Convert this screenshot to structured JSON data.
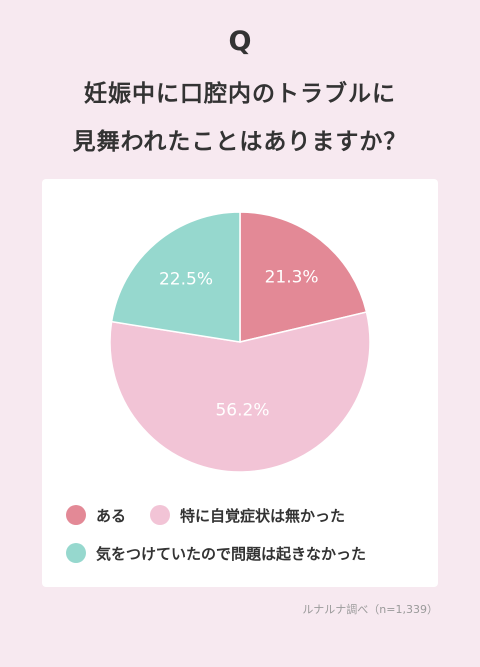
{
  "header": {
    "q_mark": "Q",
    "title_lines": [
      "妊娠中に口腔内のトラブルに",
      "見舞われたことはありますか？"
    ]
  },
  "chart_data": {
    "type": "pie",
    "categories": [
      "ある",
      "特に自覚症状は無かった",
      "気をつけていたので問題は起きなかった"
    ],
    "values": [
      21.3,
      56.2,
      22.5
    ],
    "value_labels": [
      "21.3%",
      "56.2%",
      "22.5%"
    ],
    "colors": [
      "#e38996",
      "#f2c4d6",
      "#96d8ce"
    ],
    "start_angle_deg": 0,
    "direction": "clockwise",
    "legend_position": "bottom"
  },
  "legend": {
    "rows": [
      [
        {
          "label": "ある",
          "color": "#e38996"
        },
        {
          "label": "特に自覚症状は無かった",
          "color": "#f2c4d6"
        }
      ],
      [
        {
          "label": "気をつけていたので問題は起きなかった",
          "color": "#96d8ce"
        }
      ]
    ]
  },
  "source": "ルナルナ調べ（n=1,339）"
}
